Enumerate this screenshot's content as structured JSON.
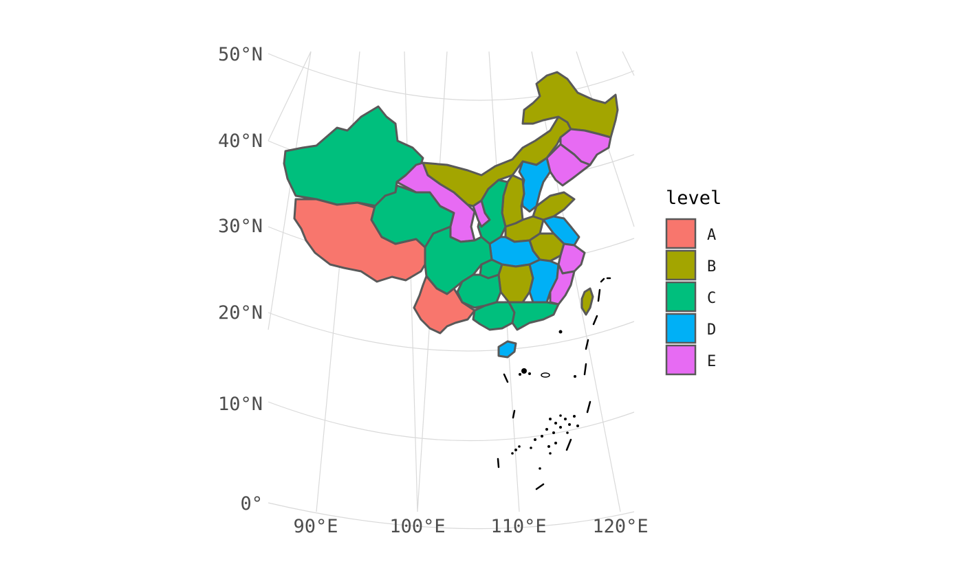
{
  "map": {
    "lat_labels": [
      "50°N",
      "40°N",
      "30°N",
      "20°N",
      "10°N",
      "0°"
    ],
    "lon_labels": [
      "90°E",
      "100°E",
      "110°E",
      "120°E"
    ]
  },
  "legend": {
    "title": "level",
    "items": [
      {
        "label": "A",
        "color": "#F8766D"
      },
      {
        "label": "B",
        "color": "#A3A500"
      },
      {
        "label": "C",
        "color": "#00BF7D"
      },
      {
        "label": "D",
        "color": "#00B0F6"
      },
      {
        "label": "E",
        "color": "#E76BF3"
      }
    ]
  },
  "colors": {
    "A": "#F8766D",
    "B": "#A3A500",
    "C": "#00BF7D",
    "D": "#00B0F6",
    "E": "#E76BF3",
    "border": "#595959",
    "graticule": "#d9d9d9"
  }
}
